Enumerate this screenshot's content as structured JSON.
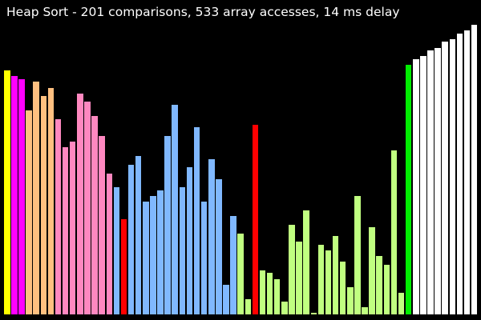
{
  "header": {
    "title": "Heap Sort - 201 comparisons, 533 array accesses, 14 ms delay"
  },
  "colors": {
    "background": "#000000",
    "text": "#ffffff"
  },
  "visualizer": {
    "max_value": 100,
    "bars": [
      {
        "value": 86,
        "color": "#ffff00"
      },
      {
        "value": 84,
        "color": "#ff00ff"
      },
      {
        "value": 83,
        "color": "#ff00ff"
      },
      {
        "value": 72,
        "color": "#ffc080"
      },
      {
        "value": 82,
        "color": "#ffc080"
      },
      {
        "value": 77,
        "color": "#ffc080"
      },
      {
        "value": 80,
        "color": "#ffc080"
      },
      {
        "value": 69,
        "color": "#ff88c0"
      },
      {
        "value": 59,
        "color": "#ff88c0"
      },
      {
        "value": 61,
        "color": "#ff88c0"
      },
      {
        "value": 78,
        "color": "#ff88c0"
      },
      {
        "value": 75,
        "color": "#ff88c0"
      },
      {
        "value": 70,
        "color": "#ff88c0"
      },
      {
        "value": 63,
        "color": "#ff88c0"
      },
      {
        "value": 50,
        "color": "#ff88c0"
      },
      {
        "value": 45,
        "color": "#80b8ff"
      },
      {
        "value": 34,
        "color": "#ff0000"
      },
      {
        "value": 53,
        "color": "#80b8ff"
      },
      {
        "value": 56,
        "color": "#80b8ff"
      },
      {
        "value": 40,
        "color": "#80b8ff"
      },
      {
        "value": 42,
        "color": "#80b8ff"
      },
      {
        "value": 44,
        "color": "#80b8ff"
      },
      {
        "value": 63,
        "color": "#80b8ff"
      },
      {
        "value": 74,
        "color": "#80b8ff"
      },
      {
        "value": 45,
        "color": "#80b8ff"
      },
      {
        "value": 52,
        "color": "#80b8ff"
      },
      {
        "value": 66,
        "color": "#80b8ff"
      },
      {
        "value": 40,
        "color": "#80b8ff"
      },
      {
        "value": 55,
        "color": "#80b8ff"
      },
      {
        "value": 48,
        "color": "#80b8ff"
      },
      {
        "value": 11,
        "color": "#80b8ff"
      },
      {
        "value": 35,
        "color": "#80b8ff"
      },
      {
        "value": 29,
        "color": "#c0ff80"
      },
      {
        "value": 6,
        "color": "#c0ff80"
      },
      {
        "value": 67,
        "color": "#ff0000"
      },
      {
        "value": 16,
        "color": "#c0ff80"
      },
      {
        "value": 15,
        "color": "#c0ff80"
      },
      {
        "value": 13,
        "color": "#c0ff80"
      },
      {
        "value": 5,
        "color": "#c0ff80"
      },
      {
        "value": 32,
        "color": "#c0ff80"
      },
      {
        "value": 26,
        "color": "#c0ff80"
      },
      {
        "value": 37,
        "color": "#c0ff80"
      },
      {
        "value": 1,
        "color": "#c0ff80"
      },
      {
        "value": 25,
        "color": "#c0ff80"
      },
      {
        "value": 23,
        "color": "#c0ff80"
      },
      {
        "value": 28,
        "color": "#c0ff80"
      },
      {
        "value": 19,
        "color": "#c0ff80"
      },
      {
        "value": 10,
        "color": "#c0ff80"
      },
      {
        "value": 42,
        "color": "#c0ff80"
      },
      {
        "value": 3,
        "color": "#c0ff80"
      },
      {
        "value": 31,
        "color": "#c0ff80"
      },
      {
        "value": 21,
        "color": "#c0ff80"
      },
      {
        "value": 18,
        "color": "#c0ff80"
      },
      {
        "value": 58,
        "color": "#c0ff80"
      },
      {
        "value": 8,
        "color": "#c0ff80"
      },
      {
        "value": 88,
        "color": "#00ee00"
      },
      {
        "value": 90,
        "color": "#ffffff"
      },
      {
        "value": 91,
        "color": "#ffffff"
      },
      {
        "value": 93,
        "color": "#ffffff"
      },
      {
        "value": 94,
        "color": "#ffffff"
      },
      {
        "value": 96,
        "color": "#ffffff"
      },
      {
        "value": 97,
        "color": "#ffffff"
      },
      {
        "value": 99,
        "color": "#ffffff"
      },
      {
        "value": 100,
        "color": "#ffffff"
      },
      {
        "value": 102,
        "color": "#ffffff"
      }
    ]
  }
}
